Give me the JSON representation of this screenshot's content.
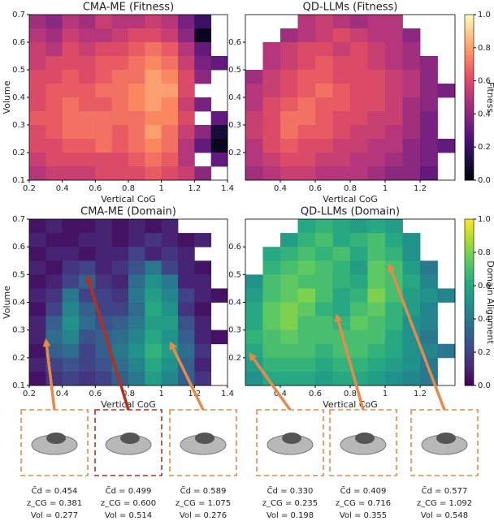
{
  "chart_data": [
    {
      "type": "heatmap",
      "title": "CMA-ME (Fitness)",
      "xlabel": "Vertical CoG",
      "ylabel": "Volume",
      "xlim": [
        0.2,
        1.4
      ],
      "ylim": [
        0.1,
        0.7
      ],
      "xticks": [
        0.2,
        0.4,
        0.6,
        0.8,
        1.0,
        1.2,
        1.4
      ],
      "yticks": [
        0.1,
        0.2,
        0.3,
        0.4,
        0.5,
        0.6,
        0.7
      ],
      "colormap": "magma",
      "z": [
        [
          0.45,
          0.4,
          0.5,
          0.45,
          0.55,
          0.5,
          0.5,
          0.55,
          0.5,
          0.35,
          0.2,
          null
        ],
        [
          0.5,
          0.45,
          0.55,
          0.5,
          0.5,
          0.55,
          0.6,
          0.6,
          0.55,
          0.4,
          0.05,
          null
        ],
        [
          0.55,
          0.5,
          0.6,
          0.55,
          0.6,
          0.6,
          0.65,
          0.7,
          0.65,
          0.5,
          0.3,
          null
        ],
        [
          0.55,
          0.6,
          0.6,
          0.6,
          0.65,
          0.65,
          0.7,
          0.75,
          0.7,
          0.55,
          0.35,
          0.3
        ],
        [
          0.6,
          0.6,
          0.65,
          0.6,
          0.65,
          0.7,
          0.7,
          0.8,
          0.75,
          0.6,
          0.4,
          null
        ],
        [
          0.6,
          0.65,
          0.65,
          0.65,
          0.7,
          0.7,
          0.75,
          0.8,
          0.8,
          0.6,
          null,
          null
        ],
        [
          0.6,
          0.65,
          0.7,
          0.65,
          0.65,
          0.7,
          0.75,
          0.8,
          0.75,
          0.55,
          0.35,
          null
        ],
        [
          0.65,
          0.65,
          0.7,
          0.7,
          0.7,
          0.7,
          0.7,
          0.75,
          0.75,
          0.6,
          null,
          0.3
        ],
        [
          0.6,
          0.65,
          0.7,
          0.7,
          0.7,
          0.65,
          0.7,
          0.8,
          0.7,
          0.55,
          0.4,
          0.1
        ],
        [
          0.6,
          0.6,
          0.65,
          0.65,
          0.7,
          0.65,
          0.7,
          0.75,
          0.7,
          0.5,
          0.3,
          0.05
        ],
        [
          0.55,
          0.6,
          0.6,
          0.6,
          0.6,
          0.6,
          0.65,
          0.7,
          0.65,
          0.5,
          null,
          0.3
        ],
        [
          0.5,
          0.55,
          0.55,
          0.55,
          0.6,
          0.6,
          0.6,
          0.65,
          0.6,
          0.55,
          0.4,
          null
        ]
      ]
    },
    {
      "type": "heatmap",
      "title": "QD-LLMs (Fitness)",
      "xlabel": "Vertical CoG",
      "xlim": [
        0.2,
        1.4
      ],
      "ylim": [
        0.1,
        0.7
      ],
      "xticks": [
        0.4,
        0.6,
        0.8,
        1.0,
        1.2
      ],
      "yticks": [
        0.2,
        0.3,
        0.4,
        0.5,
        0.6
      ],
      "colormap": "magma",
      "colorbar": {
        "label": "Fitness",
        "lim": [
          0,
          1
        ],
        "ticks": [
          {
            "value": 0,
            "label": "0.0"
          },
          0.2,
          0.4,
          0.6,
          0.8,
          {
            "value": 1,
            "label": "1.0"
          }
        ]
      },
      "z": [
        [
          null,
          null,
          null,
          0.5,
          0.55,
          0.5,
          0.45,
          0.5,
          0.5,
          null,
          null,
          null
        ],
        [
          null,
          null,
          0.45,
          0.5,
          0.55,
          0.6,
          0.55,
          0.5,
          0.5,
          0.4,
          null,
          null
        ],
        [
          null,
          0.5,
          0.55,
          0.6,
          0.6,
          0.55,
          0.6,
          0.55,
          0.5,
          0.45,
          null,
          null
        ],
        [
          null,
          0.5,
          0.55,
          0.6,
          0.65,
          0.6,
          0.6,
          0.55,
          0.5,
          0.45,
          0.4,
          null
        ],
        [
          0.45,
          0.55,
          0.6,
          0.65,
          0.65,
          0.6,
          0.6,
          0.6,
          0.55,
          0.5,
          0.4,
          null
        ],
        [
          0.5,
          0.55,
          0.6,
          0.65,
          0.7,
          0.65,
          0.6,
          0.6,
          0.55,
          0.5,
          0.4,
          0.35
        ],
        [
          0.5,
          0.6,
          0.65,
          0.7,
          0.65,
          0.65,
          0.6,
          0.6,
          0.55,
          0.45,
          0.4,
          null
        ],
        [
          0.55,
          0.6,
          0.7,
          0.7,
          0.65,
          0.6,
          0.6,
          0.55,
          0.55,
          0.45,
          0.35,
          null
        ],
        [
          0.55,
          0.6,
          0.7,
          0.65,
          0.65,
          0.6,
          0.55,
          0.55,
          0.5,
          0.45,
          0.35,
          null
        ],
        [
          0.5,
          0.6,
          0.65,
          0.6,
          0.6,
          0.55,
          0.55,
          0.5,
          0.5,
          0.4,
          0.35,
          0.3
        ],
        [
          0.5,
          0.55,
          0.6,
          0.6,
          0.55,
          0.55,
          0.5,
          0.5,
          0.45,
          0.4,
          0.35,
          null
        ],
        [
          0.45,
          0.5,
          0.55,
          0.55,
          0.5,
          0.5,
          0.5,
          0.45,
          0.4,
          0.4,
          0.3,
          null
        ]
      ]
    },
    {
      "type": "heatmap",
      "title": "CMA-ME (Domain)",
      "xlabel": "Vertical CoG",
      "ylabel": "Volume",
      "xlim": [
        0.2,
        1.4
      ],
      "ylim": [
        0.1,
        0.7
      ],
      "xticks": [
        0.2,
        0.4,
        0.6,
        0.8,
        1.0,
        1.2,
        1.4
      ],
      "yticks": [
        0.1,
        0.2,
        0.3,
        0.4,
        0.5,
        0.6,
        0.7
      ],
      "colormap": "viridis",
      "z": [
        [
          0.05,
          0.1,
          0.05,
          0.05,
          0.1,
          0.05,
          0.1,
          0.05,
          0.1,
          null,
          null,
          null
        ],
        [
          0.1,
          0.05,
          0.05,
          0.1,
          0.1,
          0.05,
          0.1,
          0.15,
          0.1,
          0.05,
          0.1,
          null
        ],
        [
          0.05,
          0.1,
          0.1,
          0.05,
          0.1,
          0.1,
          0.2,
          0.1,
          0.15,
          0.1,
          null,
          null
        ],
        [
          0.1,
          0.05,
          0.15,
          0.2,
          0.1,
          0.15,
          0.25,
          0.4,
          0.2,
          0.1,
          0.05,
          null
        ],
        [
          0.05,
          0.1,
          0.2,
          0.3,
          0.15,
          0.1,
          0.35,
          0.5,
          0.4,
          0.1,
          0.1,
          null
        ],
        [
          0.1,
          0.15,
          0.4,
          0.2,
          0.2,
          0.15,
          0.4,
          0.55,
          0.45,
          0.2,
          0.1,
          0.05
        ],
        [
          0.05,
          0.2,
          0.45,
          0.3,
          0.2,
          0.2,
          0.35,
          0.6,
          0.5,
          0.15,
          0.05,
          null
        ],
        [
          0.1,
          0.3,
          0.5,
          0.35,
          0.25,
          0.3,
          0.4,
          0.55,
          0.55,
          0.25,
          0.1,
          null
        ],
        [
          0.1,
          0.35,
          0.45,
          0.25,
          0.3,
          0.35,
          0.45,
          0.6,
          0.5,
          0.3,
          0.1,
          0.05
        ],
        [
          0.05,
          0.3,
          0.35,
          0.2,
          0.3,
          0.4,
          0.5,
          0.65,
          0.55,
          0.35,
          0.15,
          null
        ],
        [
          0.1,
          0.2,
          0.25,
          0.2,
          0.25,
          0.35,
          0.45,
          0.6,
          0.5,
          0.3,
          0.1,
          null
        ],
        [
          0.05,
          0.15,
          0.2,
          0.15,
          0.2,
          0.3,
          0.4,
          0.55,
          0.45,
          0.3,
          0.15,
          null
        ]
      ],
      "annotations": [
        {
          "x": 0.3,
          "y": 0.27,
          "color": "#e8894a",
          "caption": [
            "C̃d = 0.454",
            "z_CG = 0.381",
            "Vol = 0.277"
          ]
        },
        {
          "x": 0.55,
          "y": 0.5,
          "color": "#b5301f",
          "caption": [
            "C̃d = 0.499",
            "z_CG = 0.600",
            "Vol = 0.514"
          ]
        },
        {
          "x": 1.05,
          "y": 0.26,
          "color": "#e8894a",
          "caption": [
            "C̃d = 0.589",
            "z_CG = 1.075",
            "Vol = 0.276"
          ]
        }
      ]
    },
    {
      "type": "heatmap",
      "title": "QD-LLMs (Domain)",
      "xlabel": "Vertical CoG",
      "xlim": [
        0.2,
        1.4
      ],
      "ylim": [
        0.1,
        0.7
      ],
      "xticks": [
        0.4,
        0.6,
        0.8,
        1.0,
        1.2
      ],
      "yticks": [
        0.2,
        0.3,
        0.4,
        0.5,
        0.6
      ],
      "colormap": "viridis",
      "colorbar": {
        "label": "Domain Alignment",
        "lim": [
          0,
          1
        ],
        "ticks": [
          {
            "value": 0,
            "label": "0.0"
          },
          0.2,
          0.4,
          0.6,
          0.8,
          {
            "value": 1,
            "label": "1.0"
          }
        ]
      },
      "z": [
        [
          null,
          null,
          null,
          0.6,
          0.65,
          0.6,
          0.55,
          0.6,
          0.55,
          null,
          null,
          null
        ],
        [
          null,
          null,
          0.55,
          0.65,
          0.7,
          0.6,
          0.65,
          0.7,
          0.6,
          0.5,
          null,
          null
        ],
        [
          null,
          0.6,
          0.65,
          0.7,
          0.65,
          0.7,
          0.6,
          0.7,
          0.65,
          0.5,
          null,
          null
        ],
        [
          null,
          0.65,
          0.7,
          0.75,
          0.7,
          0.65,
          0.55,
          0.75,
          0.7,
          0.55,
          0.4,
          null
        ],
        [
          0.5,
          0.7,
          0.75,
          0.7,
          0.7,
          0.65,
          0.6,
          0.75,
          0.7,
          0.6,
          0.45,
          null
        ],
        [
          0.55,
          0.7,
          0.75,
          0.8,
          0.7,
          0.6,
          0.65,
          0.8,
          0.7,
          0.55,
          0.5,
          0.45
        ],
        [
          0.6,
          0.75,
          0.8,
          0.75,
          0.65,
          0.6,
          0.7,
          0.75,
          0.65,
          0.55,
          0.45,
          null
        ],
        [
          0.6,
          0.75,
          0.8,
          0.7,
          0.7,
          0.65,
          0.75,
          0.7,
          0.65,
          0.5,
          0.45,
          null
        ],
        [
          0.65,
          0.7,
          0.75,
          0.7,
          0.7,
          0.7,
          0.7,
          0.7,
          0.6,
          0.5,
          0.4,
          null
        ],
        [
          0.6,
          0.7,
          0.7,
          0.7,
          0.65,
          0.7,
          0.7,
          0.65,
          0.6,
          0.5,
          0.45,
          0.4
        ],
        [
          0.55,
          0.65,
          0.65,
          0.65,
          0.6,
          0.65,
          0.65,
          0.6,
          0.55,
          0.5,
          0.4,
          null
        ],
        [
          0.5,
          0.6,
          0.6,
          0.6,
          0.55,
          0.6,
          0.6,
          0.55,
          0.5,
          0.45,
          0.4,
          null
        ]
      ],
      "annotations": [
        {
          "x": 0.22,
          "y": 0.22,
          "color": "#e8894a",
          "caption": [
            "C̃d = 0.330",
            "z_CG = 0.235",
            "Vol = 0.198"
          ]
        },
        {
          "x": 0.72,
          "y": 0.36,
          "color": "#e8894a",
          "caption": [
            "C̃d = 0.409",
            "z_CG = 0.716",
            "Vol = 0.355"
          ]
        },
        {
          "x": 1.02,
          "y": 0.54,
          "color": "#e8894a",
          "caption": [
            "C̃d = 0.577",
            "z_CG = 1.092",
            "Vol = 0.548"
          ]
        }
      ]
    }
  ]
}
